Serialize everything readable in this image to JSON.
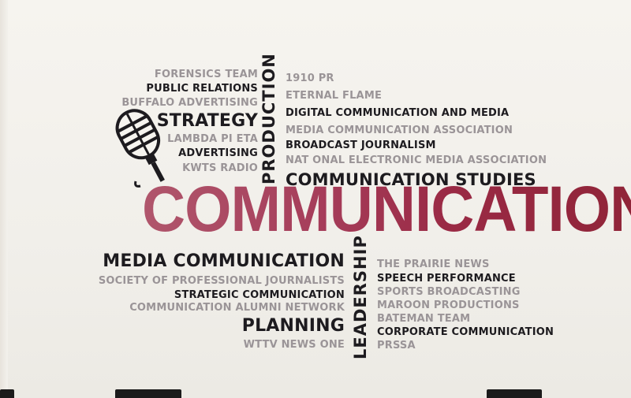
{
  "wall": {
    "right_column_top": {
      "w1": "1910 PR",
      "w2": "ETERNAL FLAME",
      "w3": "DIGITAL COMMUNICATION AND MEDIA",
      "w4": "MEDIA COMMUNICATION ASSOCIATION",
      "w5": "BROADCAST JOURNALISM",
      "w6": "NAT ONAL ELECTRONIC MEDIA ASSOCIATION",
      "w7": "COMMUNICATION STUDIES"
    },
    "left_column_top": {
      "w1": "FORENSICS TEAM",
      "w2": "PUBLIC RELATIONS",
      "w3": "BUFFALO ADVERTISING",
      "w4": "STRATEGY",
      "w5": "LAMBDA PI ETA",
      "w6": "ADVERTISING",
      "w7": "KWTS RADIO"
    },
    "vertical": {
      "production": "PRODUCTION",
      "leadership": "LEADERSHIP"
    },
    "main_word": "COMMUNICATION",
    "left_column_bottom": {
      "w1": "MEDIA COMMUNICATION",
      "w2": "SOCIETY OF PROFESSIONAL JOURNALISTS",
      "w3": "STRATEGIC COMMUNICATION",
      "w4": "COMMUNICATION ALUMNI NETWORK",
      "w5": "PLANNING",
      "w6": "WTTV NEWS ONE"
    },
    "right_column_bottom": {
      "w1": "THE PRAIRIE NEWS",
      "w2": "SPEECH PERFORMANCE",
      "w3": "SPORTS BROADCASTING",
      "w4": "MAROON PRODUCTIONS",
      "w5": "BATEMAN TEAM",
      "w6": "CORPORATE COMMUNICATION",
      "w7": "PRSSA"
    }
  },
  "colors": {
    "dark_text": "#1d1b1f",
    "grey_text": "#9a9497",
    "accent_maroon": "#9a2a45"
  },
  "icons": {
    "microphone": "microphone-icon"
  }
}
